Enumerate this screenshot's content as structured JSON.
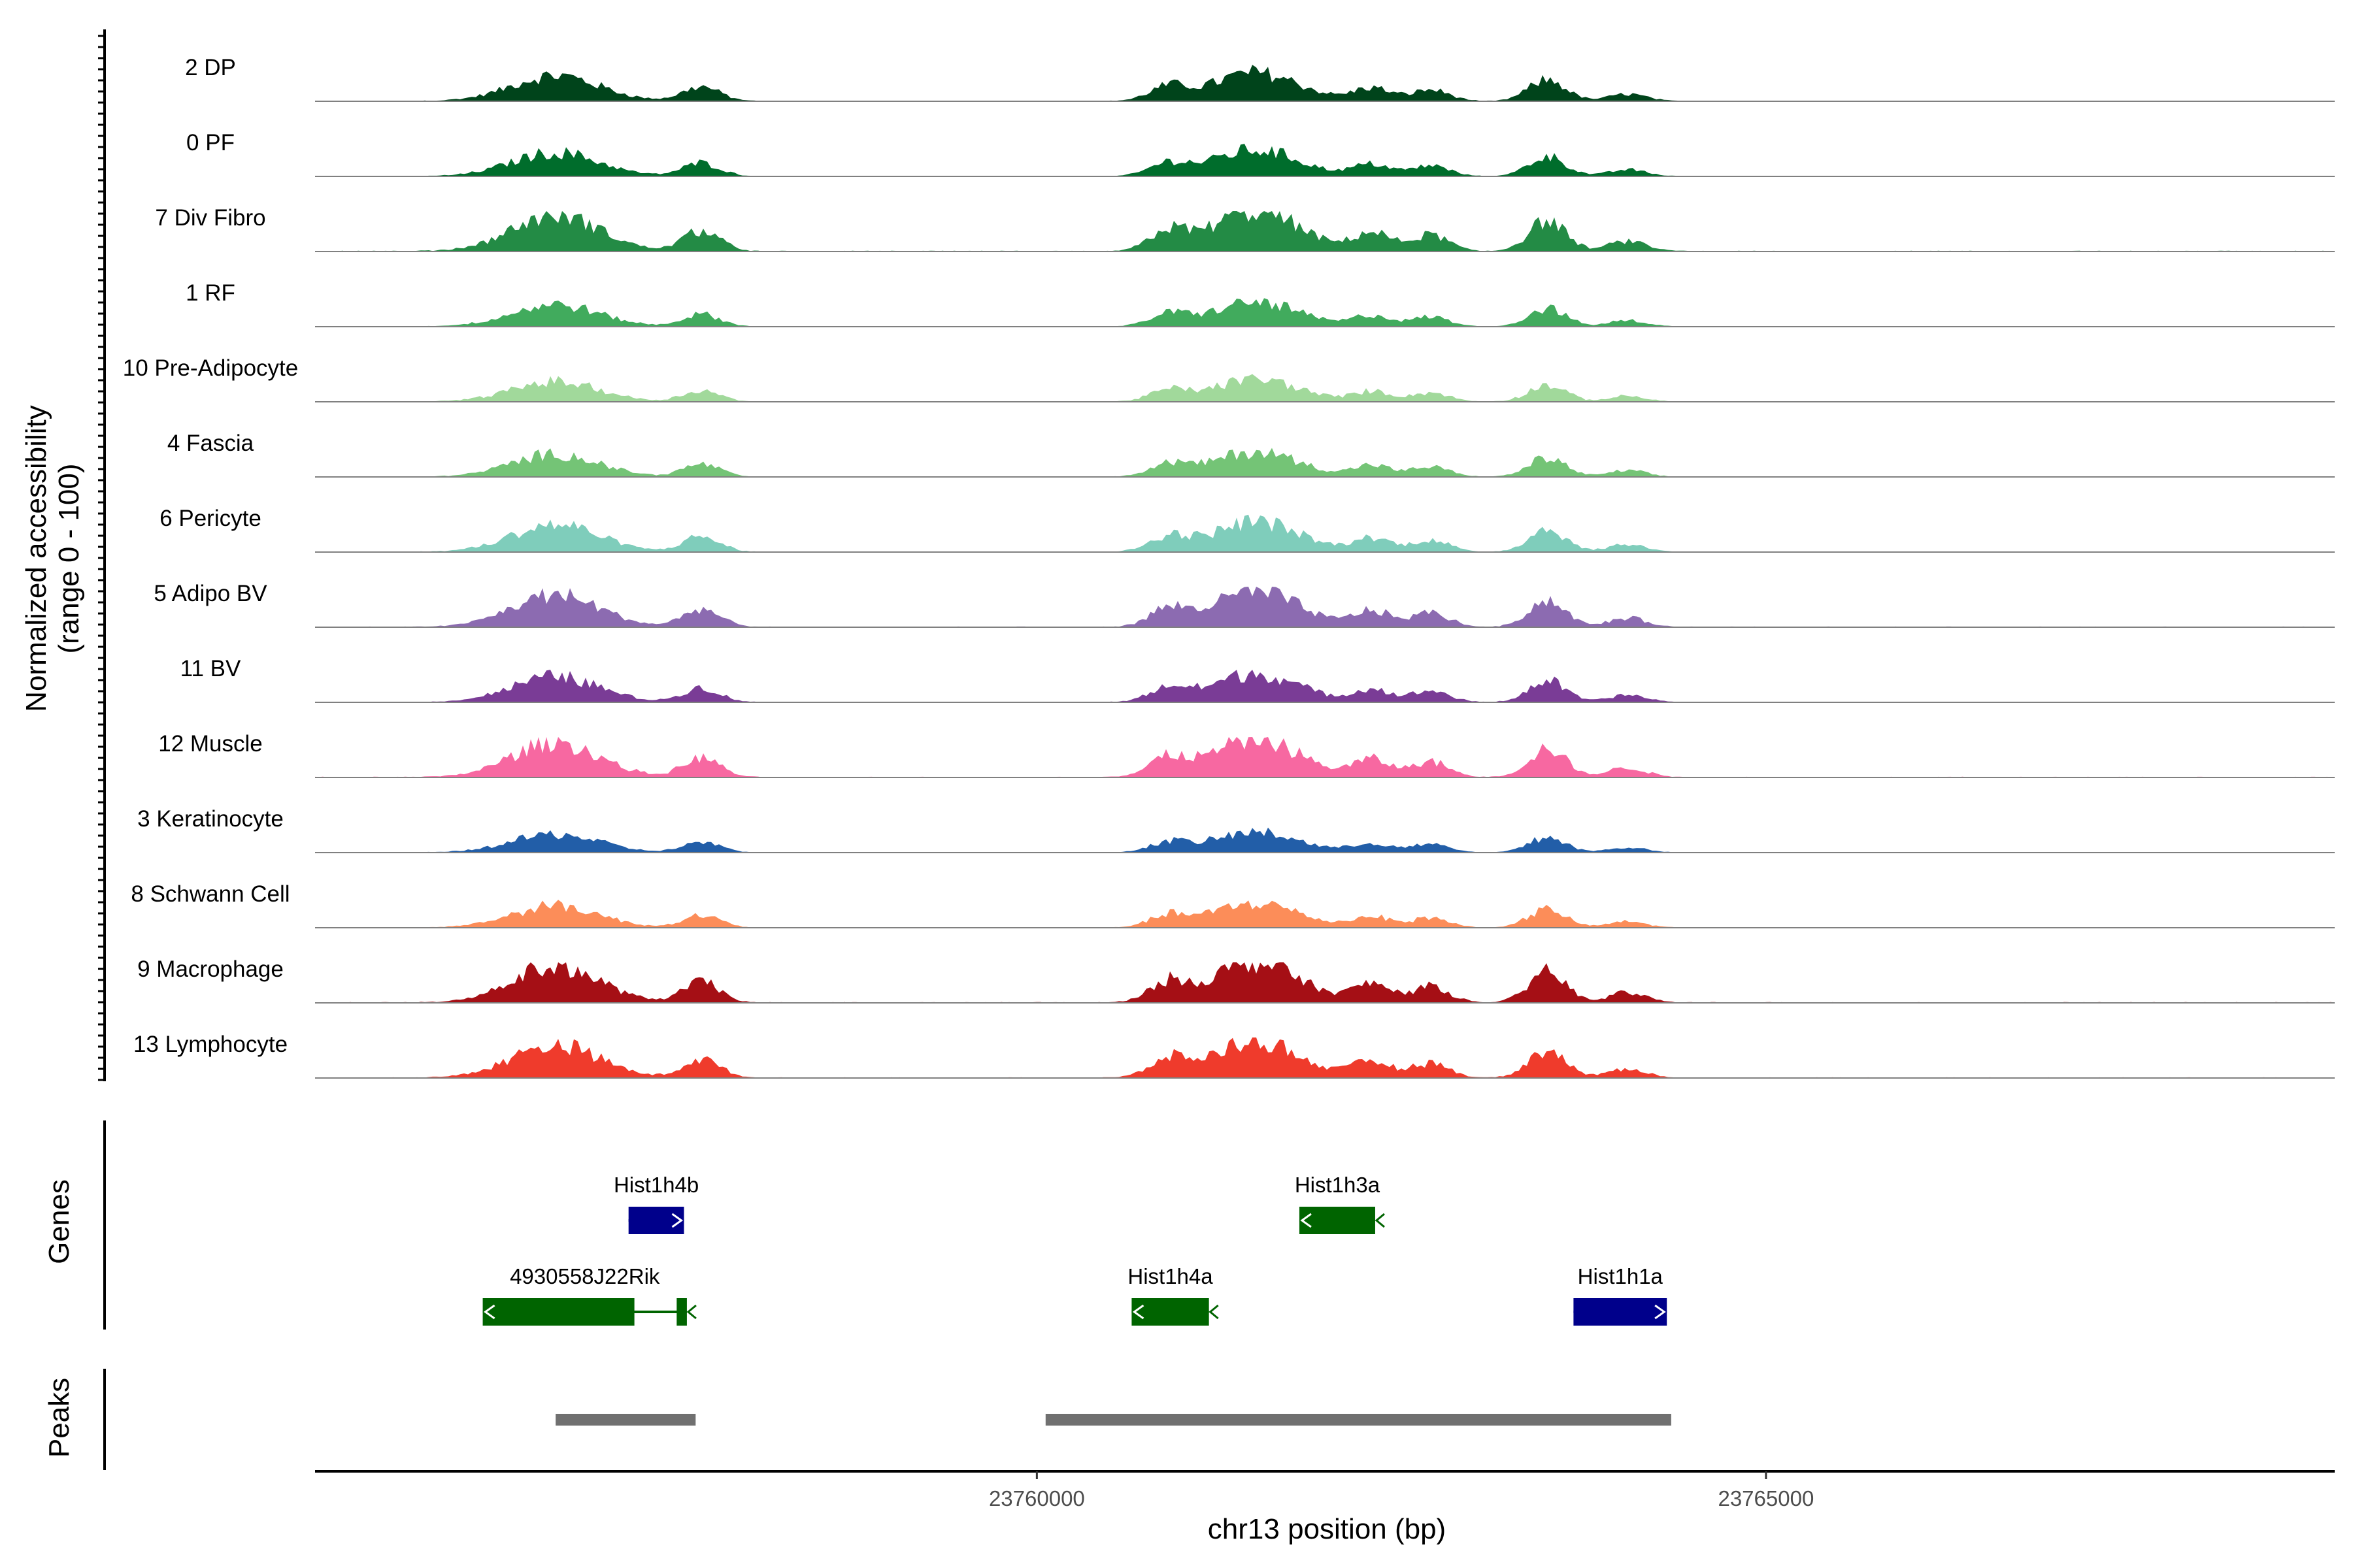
{
  "chart_data": {
    "type": "area",
    "title": "",
    "y_axis": {
      "title_line1": "Normalized accessibility",
      "title_line2": "(range 0 - 100)",
      "range": [
        0,
        100
      ]
    },
    "x_axis": {
      "label": "chr13 position (bp)",
      "range": [
        23755050,
        23768900
      ],
      "ticks": [
        23760000,
        23765000
      ],
      "tick_labels": [
        "23760000",
        "23765000"
      ]
    },
    "peak_regions_x": [
      [
        23756700,
        0.9
      ],
      [
        23757700,
        0.5
      ],
      [
        23760900,
        0.45
      ],
      [
        23761500,
        1.0
      ],
      [
        23762300,
        0.45
      ],
      [
        23762700,
        0.4
      ],
      [
        23763500,
        0.75
      ],
      [
        23764050,
        0.25
      ]
    ],
    "tracks": [
      {
        "name": "2 DP",
        "color": "#00441b",
        "scale": 0.7
      },
      {
        "name": "0 PF",
        "color": "#006d2c",
        "scale": 0.65
      },
      {
        "name": "7 Div Fibro",
        "color": "#238b45",
        "scale": 1.0
      },
      {
        "name": "1 RF",
        "color": "#41ab5d",
        "scale": 0.6
      },
      {
        "name": "10 Pre-Adipocyte",
        "color": "#a1d99b",
        "scale": 0.55
      },
      {
        "name": "4 Fascia",
        "color": "#74c476",
        "scale": 0.62
      },
      {
        "name": "6 Pericyte",
        "color": "#7fcdbb",
        "scale": 0.75
      },
      {
        "name": "5 Adipo BV",
        "color": "#8c6bb1",
        "scale": 0.88
      },
      {
        "name": "11 BV",
        "color": "#7a3c96",
        "scale": 0.7
      },
      {
        "name": "12 Muscle",
        "color": "#f768a1",
        "scale": 0.95
      },
      {
        "name": "3 Keratinocyte",
        "color": "#225ea8",
        "scale": 0.5
      },
      {
        "name": "8 Schwann Cell",
        "color": "#fc8d59",
        "scale": 0.6
      },
      {
        "name": "9 Macrophage",
        "color": "#a50f15",
        "scale": 1.0
      },
      {
        "name": "13 Lymphocyte",
        "color": "#ef3b2c",
        "scale": 0.9
      }
    ],
    "genes_title": "Genes",
    "genes": [
      {
        "name": "Hist1h4b",
        "start": 23757200,
        "end": 23757580,
        "row": 0,
        "color": "#00008b",
        "strand": "+"
      },
      {
        "name": "Hist1h3a",
        "start": 23761800,
        "end": 23762320,
        "row": 0,
        "color": "#006400",
        "strand": "-"
      },
      {
        "name": "4930558J22Rik",
        "start": 23756200,
        "end": 23757600,
        "row": 1,
        "color": "#006400",
        "strand": "-",
        "exons": [
          [
            23756200,
            23757240
          ],
          [
            23757530,
            23757600
          ]
        ]
      },
      {
        "name": "Hist1h4a",
        "start": 23760650,
        "end": 23761180,
        "row": 1,
        "color": "#006400",
        "strand": "-"
      },
      {
        "name": "Hist1h1a",
        "start": 23763680,
        "end": 23764320,
        "row": 1,
        "color": "#00008b",
        "strand": "+"
      }
    ],
    "peaks_title": "Peaks",
    "peaks": [
      {
        "start": 23756700,
        "end": 23757660
      },
      {
        "start": 23760060,
        "end": 23764350
      }
    ]
  }
}
